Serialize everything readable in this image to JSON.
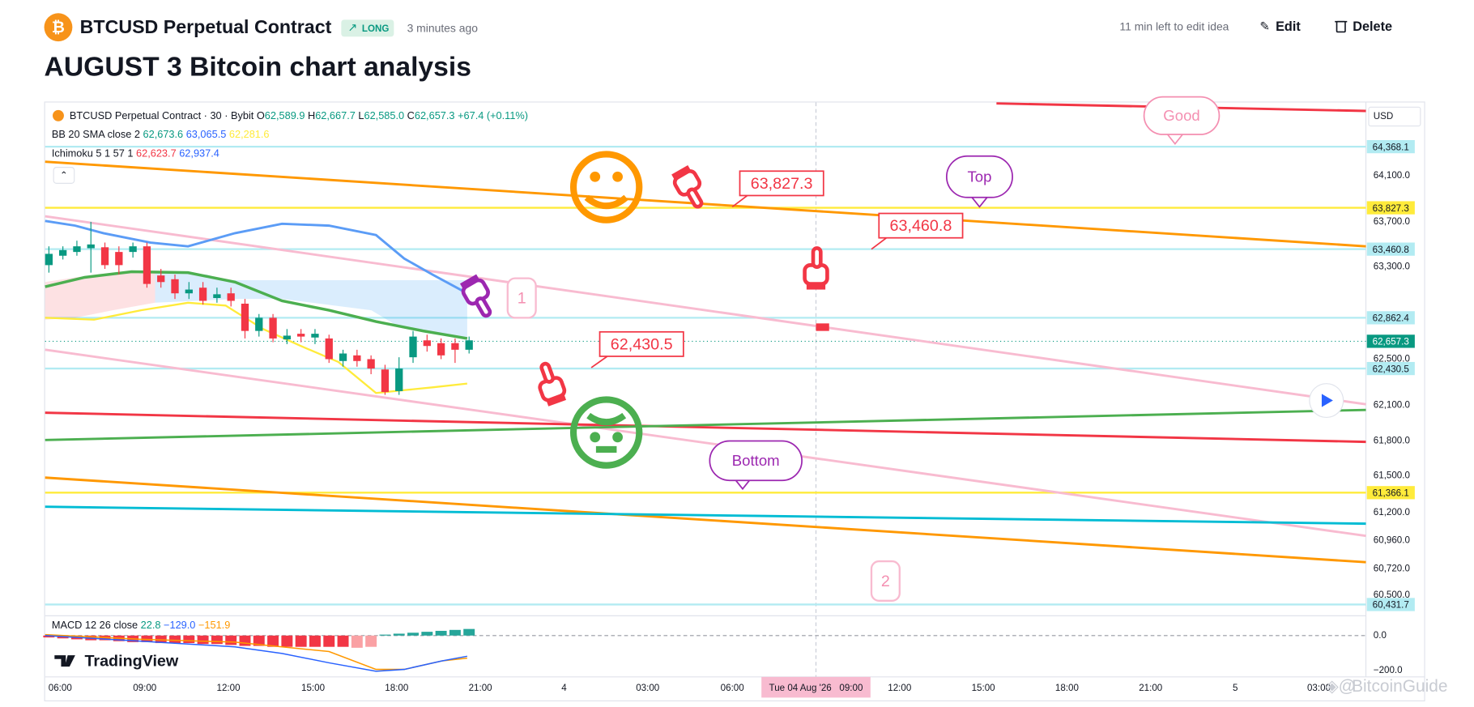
{
  "header": {
    "symbol": "BTCUSD Perpetual Contract",
    "direction": "LONG",
    "published": "3 minutes ago",
    "edit_notice": "11 min left to edit idea",
    "edit": "Edit",
    "delete": "Delete"
  },
  "title": "AUGUST 3 Bitcoin chart analysis",
  "chart": {
    "legend": {
      "symbol": "BTCUSD Perpetual Contract · 30 · Bybit",
      "ohlc": [
        {
          "label": "O",
          "value": "62,589.9"
        },
        {
          "label": "H",
          "value": "62,667.7"
        },
        {
          "label": "L",
          "value": "62,585.0"
        },
        {
          "label": "C",
          "value": "62,657.3"
        }
      ],
      "change": "+67.4 (+0.11%)"
    },
    "bb": {
      "name": "BB 20 SMA close 2",
      "values": [
        "62,673.6",
        "63,065.5",
        "62,281.6"
      ]
    },
    "ichimoku": {
      "name": "Ichimoku 5 1 57 1",
      "values": [
        "62,623.7",
        "62,937.4"
      ]
    },
    "currency": "USD",
    "price_ticks": [
      "64,100.0",
      "63,700.0",
      "63,300.0",
      "62,500.0",
      "62,100.0",
      "61,800.0",
      "61,500.0",
      "61,200.0",
      "60,960.0",
      "60,720.0",
      "60,500.0"
    ],
    "price_levels": [
      "64,368.1",
      "63,827.3",
      "63,460.8",
      "62,862.4",
      "62,657.3",
      "62,430.5",
      "61,366.1",
      "60,431.7"
    ],
    "callouts": [
      "63,827.3",
      "63,460.8",
      "62,430.5"
    ],
    "bubbles": [
      "Top",
      "Bottom",
      "Good"
    ],
    "counts": [
      "1",
      "2"
    ],
    "time_ticks": [
      "06:00",
      "09:00",
      "12:00",
      "15:00",
      "18:00",
      "21:00",
      "4",
      "03:00",
      "06:00",
      "12:00",
      "15:00",
      "18:00",
      "21:00",
      "5",
      "03:00"
    ],
    "crosshair_time": "Tue 04 Aug '26   09:00",
    "macd": {
      "name": "MACD 12 26 close",
      "values": [
        "22.8",
        "−129.0",
        "−151.9"
      ],
      "axis": [
        "0.0",
        "−200.0"
      ]
    },
    "brand": "TradingView"
  },
  "watermark": "BitcoinGuide"
}
